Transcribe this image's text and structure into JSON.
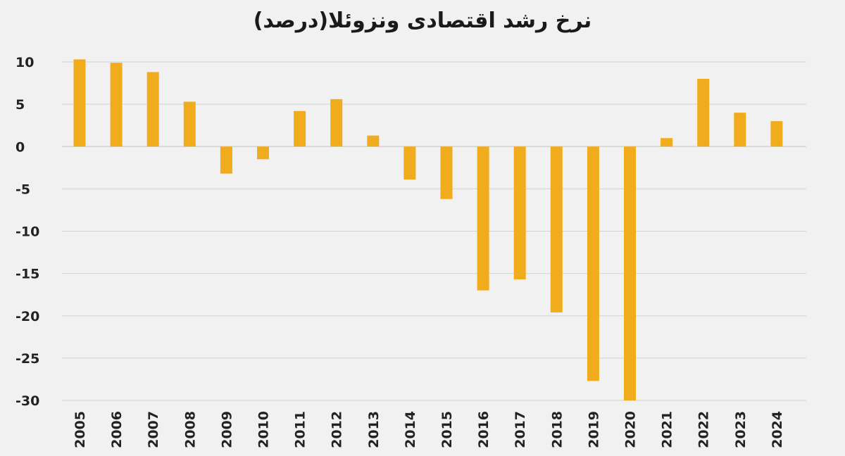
{
  "chart_data": {
    "type": "bar",
    "title": "نرخ رشد اقتصادی ونزوئلا(درصد)",
    "xlabel": "",
    "ylabel": "",
    "categories": [
      "2005",
      "2006",
      "2007",
      "2008",
      "2009",
      "2010",
      "2011",
      "2012",
      "2013",
      "2014",
      "2015",
      "2016",
      "2017",
      "2018",
      "2019",
      "2020",
      "2021",
      "2022",
      "2023",
      "2024"
    ],
    "values": [
      10.3,
      9.9,
      8.8,
      5.3,
      -3.2,
      -1.5,
      4.2,
      5.6,
      1.3,
      -3.9,
      -6.2,
      -17.0,
      -15.7,
      -19.6,
      -27.7,
      -30.0,
      1.0,
      8.0,
      4.0,
      3.0
    ],
    "yticks": [
      10,
      5,
      0,
      -5,
      -10,
      -15,
      -20,
      -25,
      -30
    ],
    "ylim": [
      -30,
      10
    ],
    "grid": true,
    "legend": "none",
    "bar_color": "#f0ac1c",
    "grid_color": "#d3d3d3"
  }
}
